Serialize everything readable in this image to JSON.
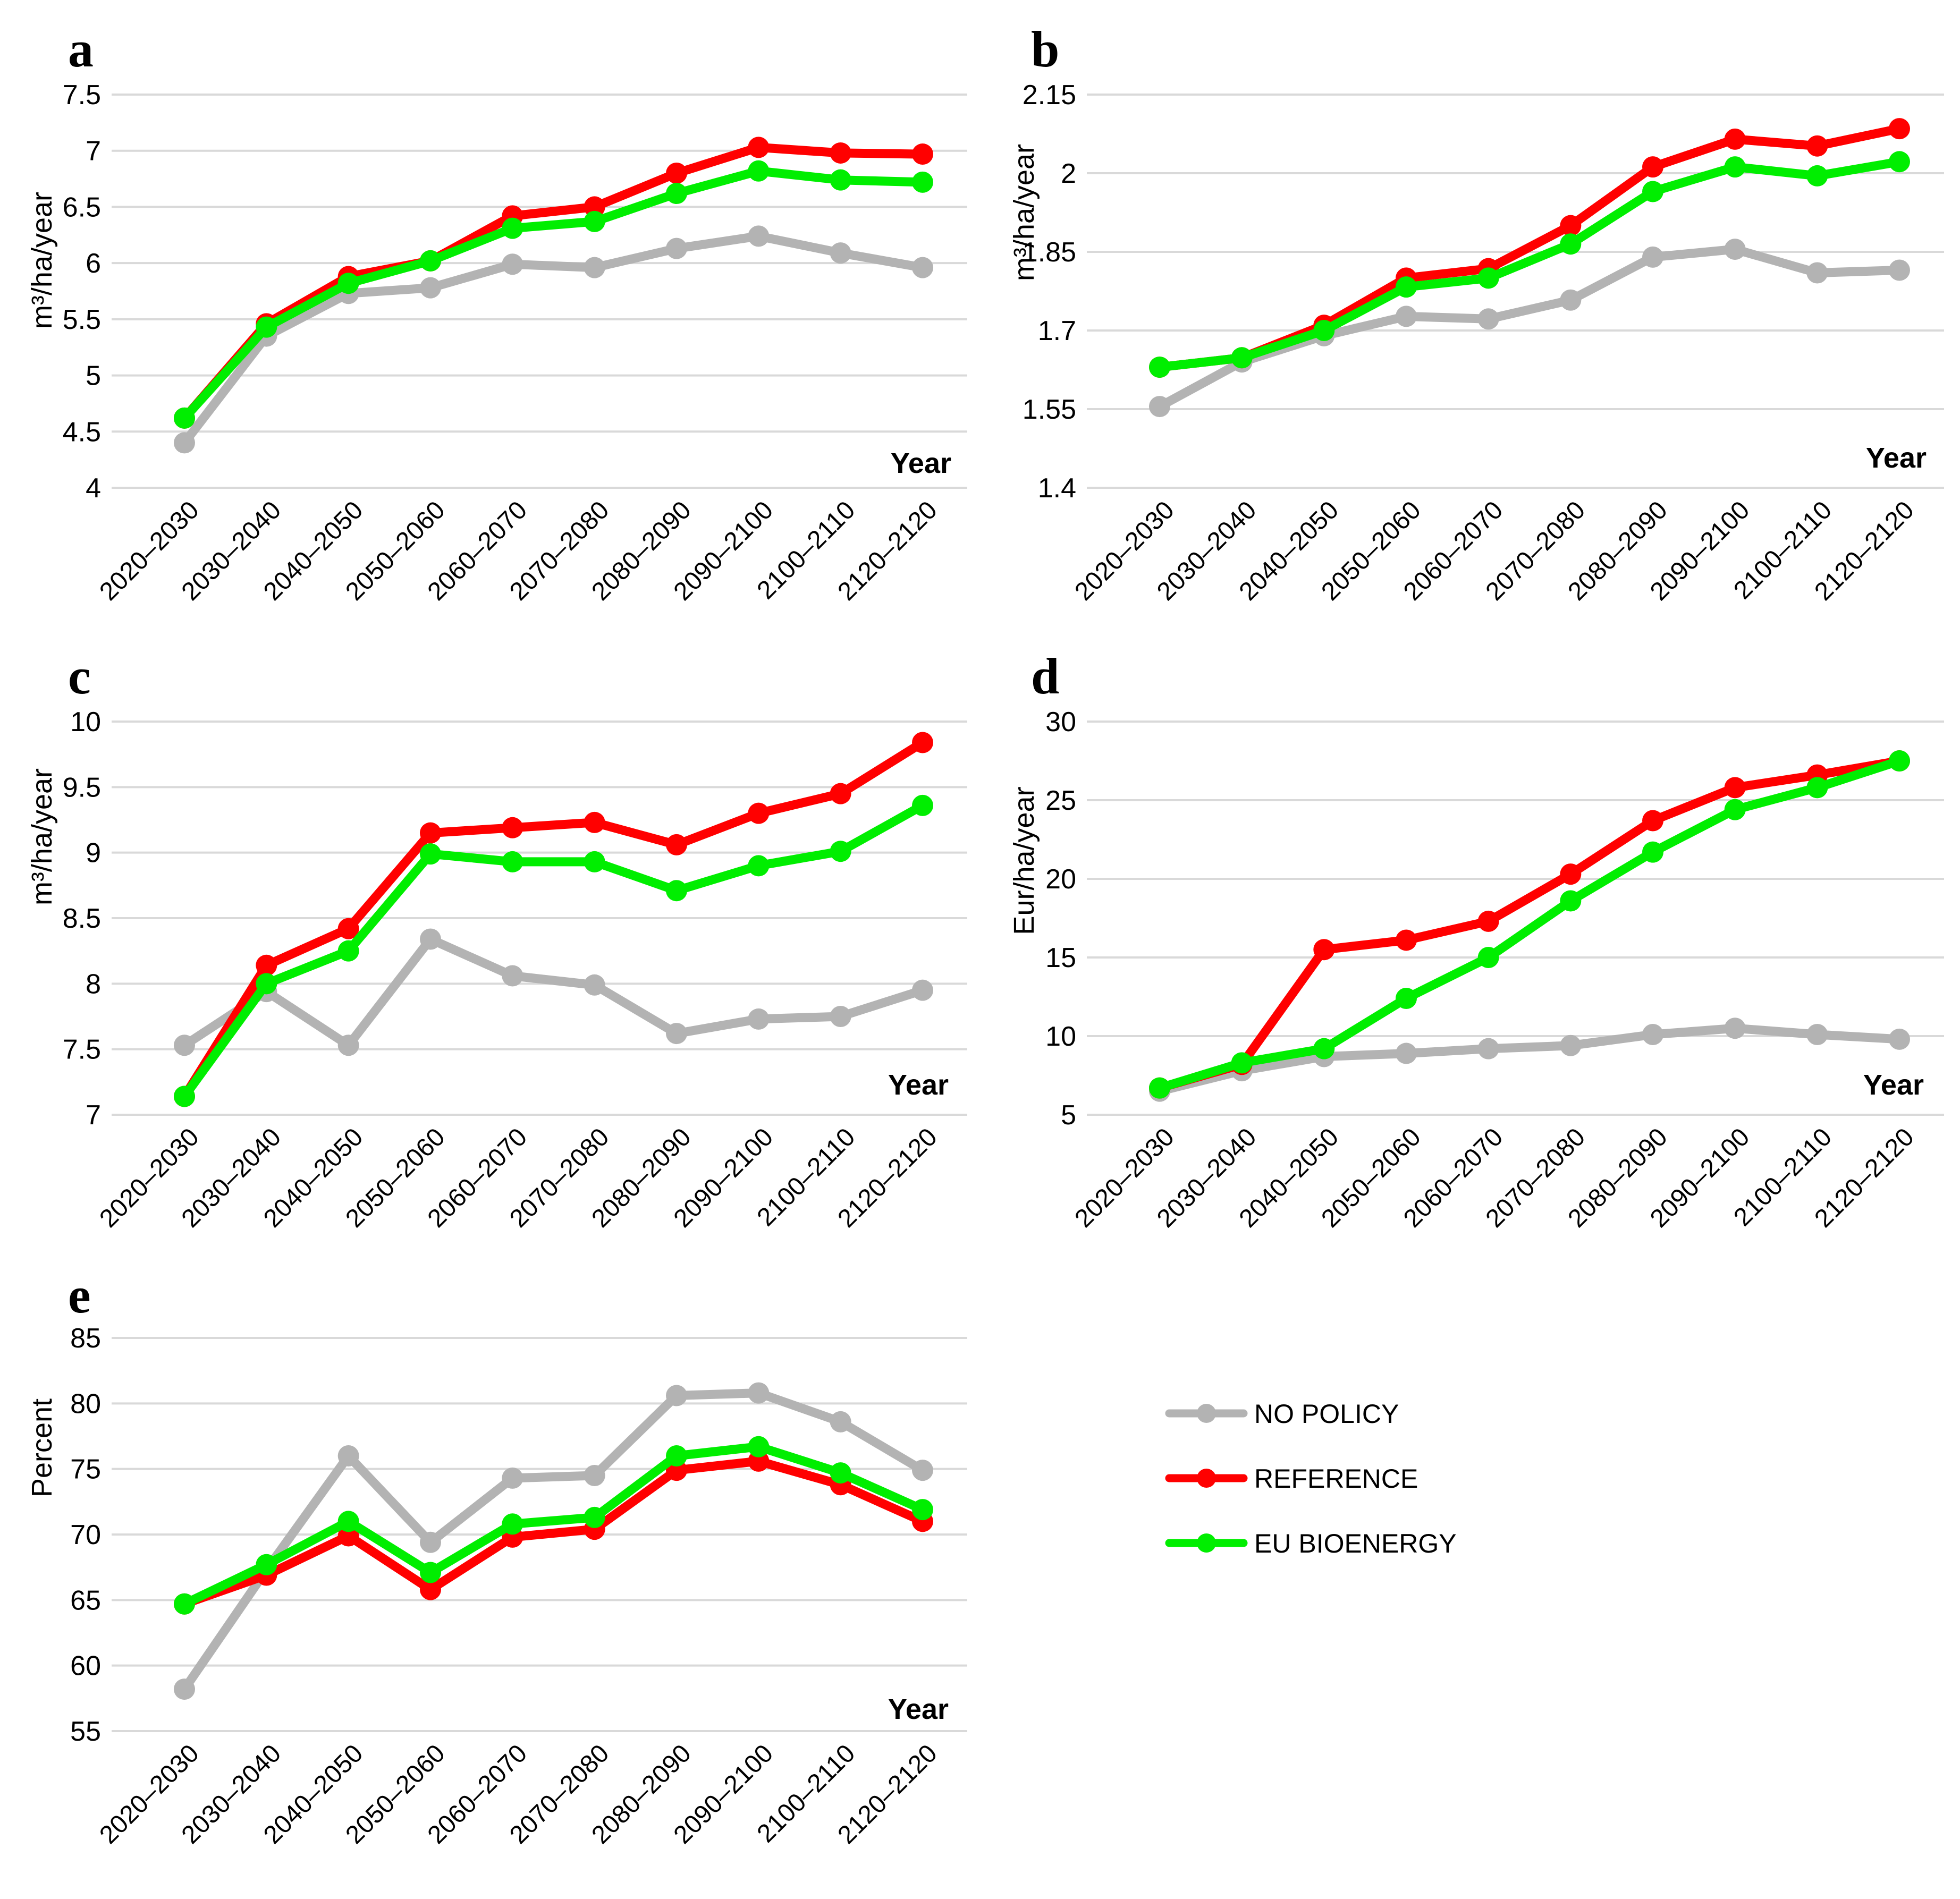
{
  "colors": {
    "no_policy": "#b3b3b3",
    "reference": "#ff0000",
    "eu_bioenergy": "#00ee00",
    "grid": "#d9d9d9"
  },
  "legend": [
    {
      "name": "NO POLICY",
      "color_key": "no_policy"
    },
    {
      "name": "REFERENCE",
      "color_key": "reference"
    },
    {
      "name": "EU BIOENERGY",
      "color_key": "eu_bioenergy"
    }
  ],
  "chart_data": [
    {
      "id": "a",
      "type": "line",
      "panel_label": "a",
      "ylabel": "m³/ha/year",
      "xlabel": "Year",
      "categories": [
        "2020–2030",
        "2030–2040",
        "2040–2050",
        "2050–2060",
        "2060–2070",
        "2070–2080",
        "2080–2090",
        "2090–2100",
        "2100–2110",
        "2120–2120"
      ],
      "ylim": [
        4,
        7.5
      ],
      "yticks": [
        "4",
        "4.5",
        "5",
        "5.5",
        "6",
        "6.5",
        "7",
        "7.5"
      ],
      "yticks_values": [
        4,
        4.5,
        5,
        5.5,
        6,
        6.5,
        7,
        7.5
      ],
      "series": [
        {
          "name": "NO POLICY",
          "values": [
            4.4,
            5.35,
            5.73,
            5.78,
            5.99,
            5.96,
            6.13,
            6.24,
            6.09,
            5.96
          ]
        },
        {
          "name": "REFERENCE",
          "values": [
            4.62,
            5.46,
            5.88,
            6.02,
            6.42,
            6.5,
            6.8,
            7.03,
            6.98,
            6.97
          ]
        },
        {
          "name": "EU BIOENERGY",
          "values": [
            4.62,
            5.43,
            5.82,
            6.02,
            6.31,
            6.37,
            6.62,
            6.82,
            6.74,
            6.72
          ]
        }
      ]
    },
    {
      "id": "b",
      "type": "line",
      "panel_label": "b",
      "ylabel": "m³/ha/year",
      "xlabel": "Year",
      "categories": [
        "2020–2030",
        "2030–2040",
        "2040–2050",
        "2050–2060",
        "2060–2070",
        "2070–2080",
        "2080–2090",
        "2090–2100",
        "2100–2110",
        "2120–2120"
      ],
      "ylim": [
        1.4,
        2.15
      ],
      "yticks": [
        "1.4",
        "1.55",
        "1.7",
        "1.85",
        "2",
        "2.15"
      ],
      "yticks_values": [
        1.4,
        1.55,
        1.7,
        1.85,
        2,
        2.15
      ],
      "series": [
        {
          "name": "NO POLICY",
          "values": [
            1.555,
            1.64,
            1.69,
            1.727,
            1.722,
            1.758,
            1.84,
            1.855,
            1.81,
            1.815
          ]
        },
        {
          "name": "REFERENCE",
          "values": [
            1.63,
            1.648,
            1.71,
            1.8,
            1.818,
            1.9,
            2.012,
            2.065,
            2.052,
            2.085
          ]
        },
        {
          "name": "EU BIOENERGY",
          "values": [
            1.63,
            1.648,
            1.7,
            1.783,
            1.8,
            1.865,
            1.965,
            2.012,
            1.995,
            2.022
          ]
        }
      ]
    },
    {
      "id": "c",
      "type": "line",
      "panel_label": "c",
      "ylabel": "m³/ha/year",
      "xlabel": "Year",
      "categories": [
        "2020–2030",
        "2030–2040",
        "2040–2050",
        "2050–2060",
        "2060–2070",
        "2070–2080",
        "2080–2090",
        "2090–2100",
        "2100–2110",
        "2120–2120"
      ],
      "ylim": [
        7,
        10
      ],
      "yticks": [
        "7",
        "7.5",
        "8",
        "8.5",
        "9",
        "9.5",
        "10"
      ],
      "yticks_values": [
        7,
        7.5,
        8,
        8.5,
        9,
        9.5,
        10
      ],
      "series": [
        {
          "name": "NO POLICY",
          "values": [
            7.53,
            7.94,
            7.53,
            8.34,
            8.06,
            7.99,
            7.62,
            7.73,
            7.75,
            7.95
          ]
        },
        {
          "name": "REFERENCE",
          "values": [
            7.14,
            8.14,
            8.42,
            9.15,
            9.19,
            9.23,
            9.06,
            9.3,
            9.45,
            9.84
          ]
        },
        {
          "name": "EU BIOENERGY",
          "values": [
            7.14,
            8.0,
            8.25,
            8.99,
            8.93,
            8.93,
            8.71,
            8.9,
            9.01,
            9.36
          ]
        }
      ]
    },
    {
      "id": "d",
      "type": "line",
      "panel_label": "d",
      "ylabel": "Eur/ha/year",
      "xlabel": "Year",
      "categories": [
        "2020–2030",
        "2030–2040",
        "2040–2050",
        "2050–2060",
        "2060–2070",
        "2070–2080",
        "2080–2090",
        "2090–2100",
        "2100–2110",
        "2120–2120"
      ],
      "ylim": [
        5,
        30
      ],
      "yticks": [
        "5",
        "10",
        "15",
        "20",
        "25",
        "30"
      ],
      "yticks_values": [
        5,
        10,
        15,
        20,
        25,
        30
      ],
      "series": [
        {
          "name": "NO POLICY",
          "values": [
            6.5,
            7.8,
            8.7,
            8.9,
            9.2,
            9.4,
            10.1,
            10.5,
            10.1,
            9.8
          ]
        },
        {
          "name": "REFERENCE",
          "values": [
            6.7,
            8.2,
            15.5,
            16.1,
            17.3,
            20.3,
            23.7,
            25.8,
            26.6,
            27.5
          ]
        },
        {
          "name": "EU BIOENERGY",
          "values": [
            6.7,
            8.3,
            9.2,
            12.4,
            15.0,
            18.6,
            21.7,
            24.4,
            25.8,
            27.5
          ]
        }
      ]
    },
    {
      "id": "e",
      "type": "line",
      "panel_label": "e",
      "ylabel": "Percent",
      "xlabel": "Year",
      "categories": [
        "2020–2030",
        "2030–2040",
        "2040–2050",
        "2050–2060",
        "2060–2070",
        "2070–2080",
        "2080–2090",
        "2090–2100",
        "2100–2110",
        "2120–2120"
      ],
      "ylim": [
        55,
        85
      ],
      "yticks": [
        "55",
        "60",
        "65",
        "70",
        "75",
        "80",
        "85"
      ],
      "yticks_values": [
        55,
        60,
        65,
        70,
        75,
        80,
        85
      ],
      "series": [
        {
          "name": "NO POLICY",
          "values": [
            58.2,
            67.3,
            76.0,
            69.4,
            74.3,
            74.5,
            80.6,
            80.8,
            78.6,
            74.9
          ]
        },
        {
          "name": "REFERENCE",
          "values": [
            64.7,
            66.9,
            69.9,
            65.8,
            69.8,
            70.4,
            74.9,
            75.6,
            73.8,
            71.0
          ]
        },
        {
          "name": "EU BIOENERGY",
          "values": [
            64.7,
            67.7,
            71.0,
            67.1,
            70.8,
            71.3,
            76.0,
            76.7,
            74.7,
            71.9
          ]
        }
      ]
    }
  ]
}
